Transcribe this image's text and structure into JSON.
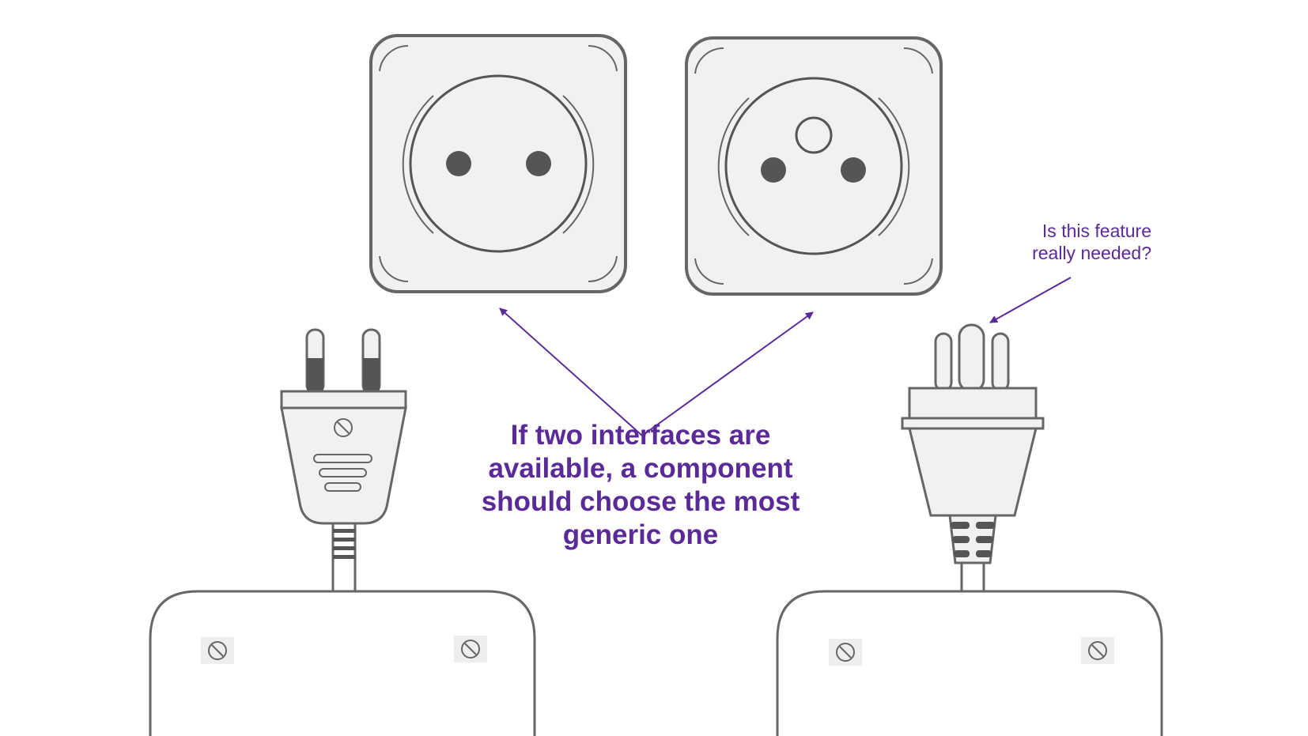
{
  "annotations": {
    "main_caption": [
      "If two interfaces are",
      "available, a component",
      "should choose the most",
      "generic one"
    ],
    "side_caption": [
      "Is this feature",
      "really needed?"
    ]
  },
  "colors": {
    "annotation": "#5b2a99",
    "outline": "#666666",
    "fill": "#f1f1f1",
    "prong_dark": "#555555"
  },
  "icons": [
    "two-pin-socket",
    "grounded-socket",
    "two-pin-plug",
    "three-pin-plug",
    "device-housing",
    "screw"
  ]
}
